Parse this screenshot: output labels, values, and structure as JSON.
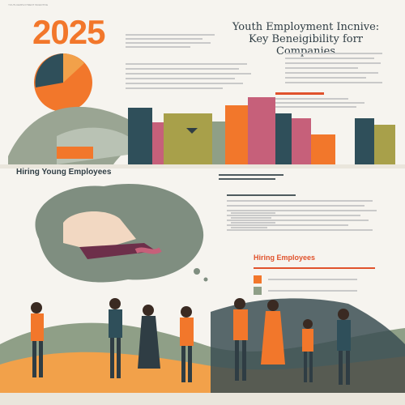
{
  "header": {
    "top_strip": "YOUTH EMPLOYMENT INCENTIVE",
    "year": "2025",
    "title_line1": "Youth Employment Incnive:",
    "title_line2": "Key Beneigibility forr Companies"
  },
  "sections": {
    "hiring_young": "Hiring Young Employees",
    "hiring_employees": "Hiring Employees"
  },
  "colors": {
    "orange": "#f2772b",
    "dark_teal": "#2f4f5a",
    "sage": "#8f9f87",
    "olive": "#a8a04a",
    "rose": "#c6607a",
    "cream": "#f6f4ef",
    "red_orange": "#e0522c"
  },
  "icons": [
    "pie-chart-icon",
    "bar-chart-icon",
    "speech-cloud-icon",
    "people-illustration-icon"
  ]
}
